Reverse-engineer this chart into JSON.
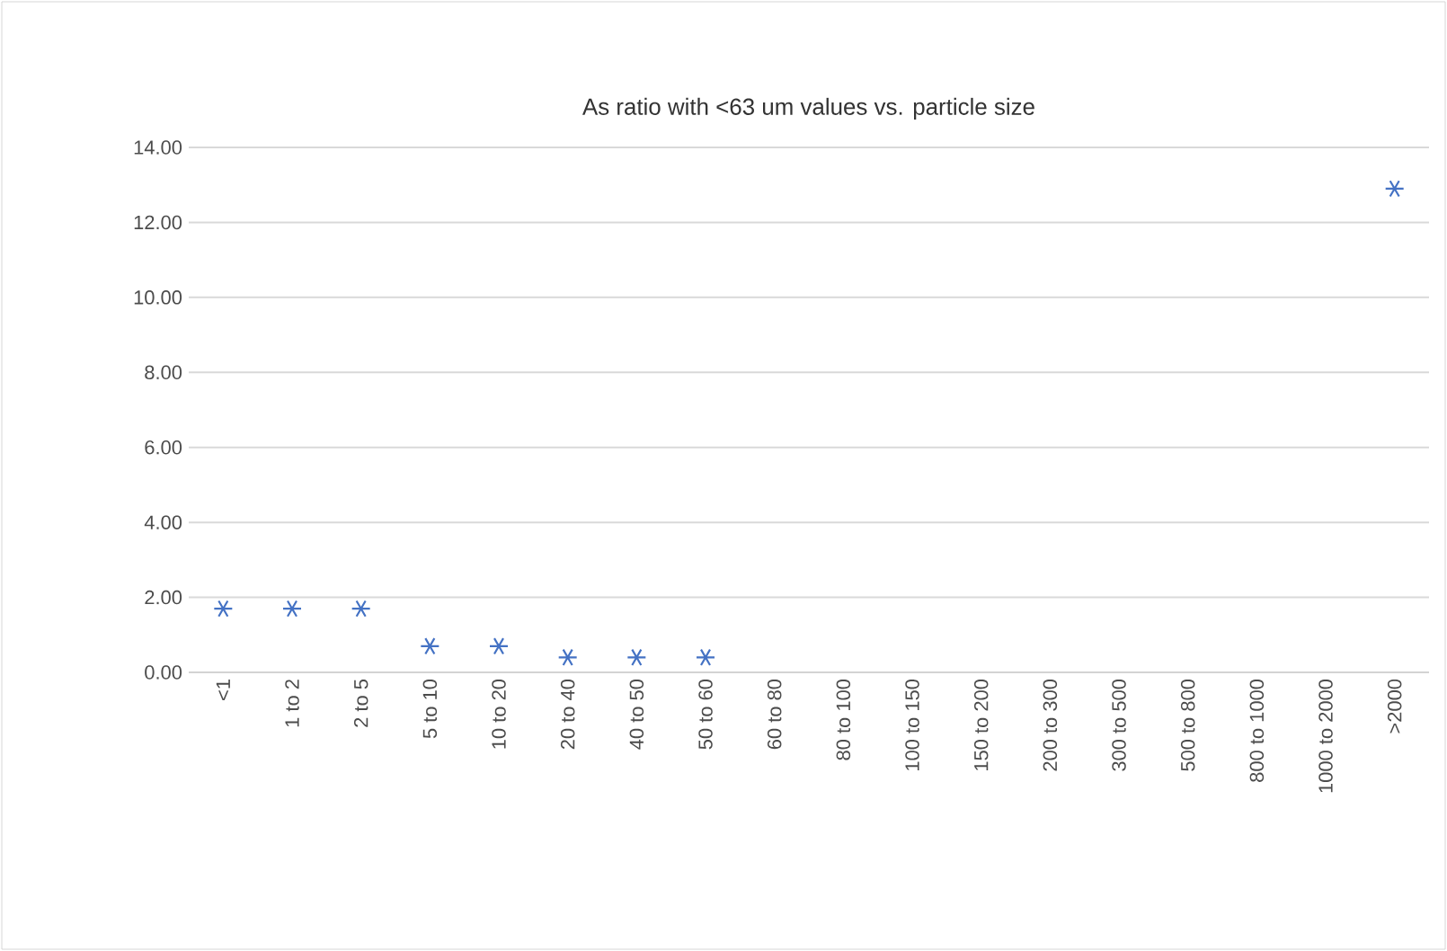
{
  "chart_data": {
    "type": "scatter",
    "title": "As ratio with <63 um values vs. particle size",
    "categories": [
      "<1",
      "1 to 2",
      "2 to 5",
      "5 to 10",
      "10 to 20",
      "20 to 40",
      "40 to 50",
      "50 to 60",
      "60 to 80",
      "80 to 100",
      "100 to 150",
      "150 to 200",
      "200 to 300",
      "300 to 500",
      "500 to 800",
      "800 to 1000",
      "1000 to 2000",
      ">2000"
    ],
    "series": [
      {
        "color": "#4472c4",
        "values": [
          1.7,
          1.7,
          1.7,
          0.7,
          0.7,
          0.4,
          0.4,
          0.4,
          null,
          null,
          null,
          null,
          null,
          null,
          null,
          null,
          null,
          12.9
        ]
      }
    ],
    "ylim": [
      0,
      14
    ],
    "yticks": [
      {
        "value": 0,
        "label": "0.00"
      },
      {
        "value": 2,
        "label": "2.00"
      },
      {
        "value": 4,
        "label": "4.00"
      },
      {
        "value": 6,
        "label": "6.00"
      },
      {
        "value": 8,
        "label": "8.00"
      },
      {
        "value": 10,
        "label": "10.00"
      },
      {
        "value": 12,
        "label": "12.00"
      },
      {
        "value": 14,
        "label": "14.00"
      }
    ],
    "grid": "y",
    "marker": "cross"
  }
}
